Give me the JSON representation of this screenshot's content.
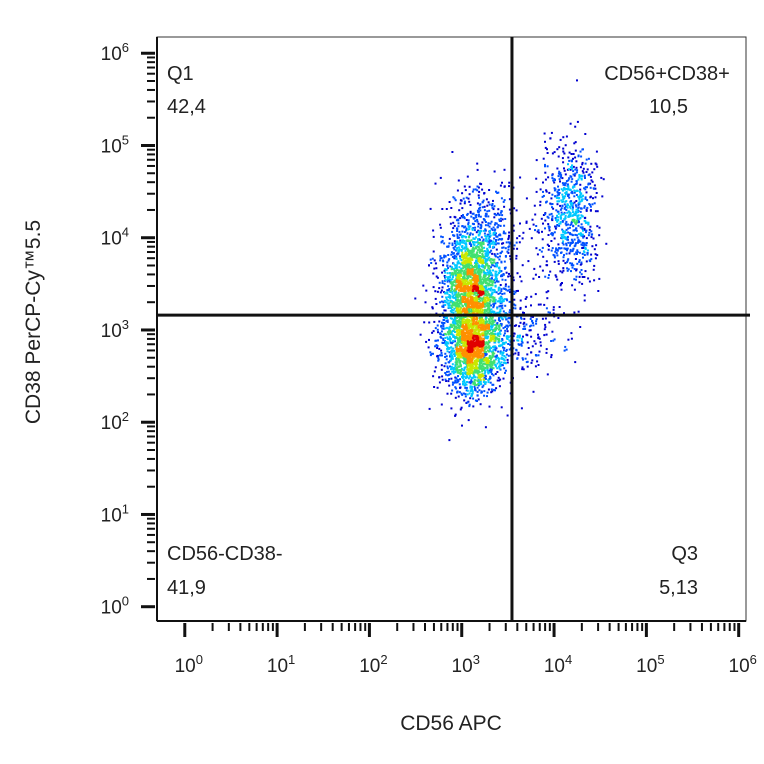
{
  "chart_data": {
    "type": "scatter",
    "subtype": "flow-cytometry-density-dot-plot",
    "xlabel": "CD56 APC",
    "ylabel": "CD38 PerCP-Cy™5.5",
    "x_scale": "log",
    "y_scale": "log",
    "xlim": [
      0.5,
      1200000
    ],
    "ylim": [
      0.7,
      1500000
    ],
    "x_ticks": [
      {
        "base": "10",
        "exp": "0",
        "value": 1
      },
      {
        "base": "10",
        "exp": "1",
        "value": 10
      },
      {
        "base": "10",
        "exp": "2",
        "value": 100
      },
      {
        "base": "10",
        "exp": "3",
        "value": 1000
      },
      {
        "base": "10",
        "exp": "4",
        "value": 10000
      },
      {
        "base": "10",
        "exp": "5",
        "value": 100000
      },
      {
        "base": "10",
        "exp": "6",
        "value": 1000000
      }
    ],
    "y_ticks": [
      {
        "base": "10",
        "exp": "0",
        "value": 1
      },
      {
        "base": "10",
        "exp": "1",
        "value": 10
      },
      {
        "base": "10",
        "exp": "2",
        "value": 100
      },
      {
        "base": "10",
        "exp": "3",
        "value": 1000
      },
      {
        "base": "10",
        "exp": "4",
        "value": 10000
      },
      {
        "base": "10",
        "exp": "5",
        "value": 100000
      },
      {
        "base": "10",
        "exp": "6",
        "value": 1000000
      }
    ],
    "gates": {
      "x": 3500,
      "y": 1450
    },
    "quadrants": [
      {
        "id": "q1",
        "name": "Q1",
        "percent": "42,4"
      },
      {
        "id": "q2",
        "name": "CD56+CD38+",
        "percent": "10,5"
      },
      {
        "id": "q3",
        "name": "Q3",
        "percent": "5,13"
      },
      {
        "id": "q4",
        "name": "CD56-CD38-",
        "percent": "41,9"
      }
    ],
    "density_clusters": [
      {
        "cx": 1300,
        "cy": 3000,
        "sx_log": 0.17,
        "sy_log": 0.28,
        "weight": 0.34
      },
      {
        "cx": 1300,
        "cy": 650,
        "sx_log": 0.16,
        "sy_log": 0.24,
        "weight": 0.34
      },
      {
        "cx": 1700,
        "cy": 10000,
        "sx_log": 0.2,
        "sy_log": 0.3,
        "weight": 0.1
      },
      {
        "cx": 3000,
        "cy": 900,
        "sx_log": 0.3,
        "sy_log": 0.25,
        "weight": 0.07
      },
      {
        "cx": 15000,
        "cy": 18000,
        "sx_log": 0.15,
        "sy_log": 0.38,
        "weight": 0.15
      }
    ],
    "colormap": [
      "#0000d0",
      "#0050ff",
      "#00c8ff",
      "#40e070",
      "#c8e800",
      "#ff9000",
      "#e00000"
    ],
    "grid": false,
    "legend": "none"
  }
}
